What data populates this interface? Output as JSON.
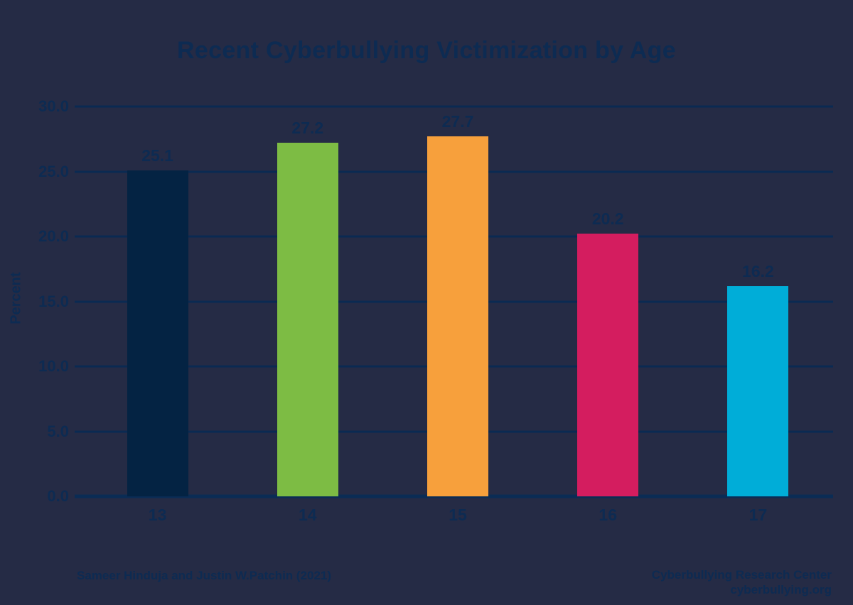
{
  "page": {
    "background_color": "#252b45",
    "text_color": "#0d2b52",
    "gridline_color": "#0a2a52"
  },
  "chart_data": {
    "type": "bar",
    "title": "Recent Cyberbullying Victimization by Age",
    "ylabel": "Percent",
    "categories": [
      "13",
      "14",
      "15",
      "16",
      "17"
    ],
    "values": [
      25.1,
      27.2,
      27.7,
      20.2,
      16.2
    ],
    "value_labels": [
      "25.1",
      "27.2",
      "27.7",
      "20.2",
      "16.2"
    ],
    "bar_colors": [
      "#042343",
      "#7dbc44",
      "#f7a03c",
      "#d41d5f",
      "#00add8"
    ],
    "ylim": [
      0,
      30
    ],
    "yticks": [
      "0.0",
      "5.0",
      "10.0",
      "15.0",
      "20.0",
      "25.0",
      "30.0"
    ],
    "grid": "horizontal",
    "legend": "none"
  },
  "footer": {
    "left": "Sameer Hinduja and Justin W.Patchin (2021)",
    "right_line1": "Cyberbullying Research Center",
    "right_line2": "cyberbullying.org"
  }
}
